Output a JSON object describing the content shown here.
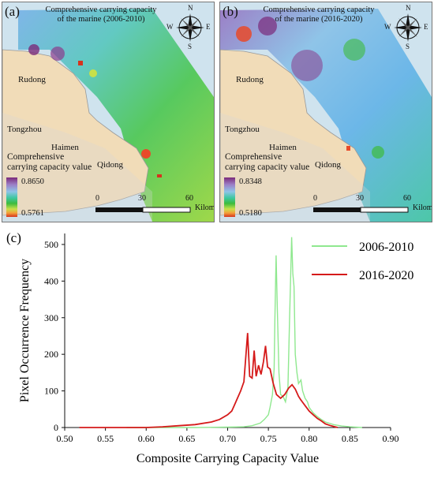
{
  "panels": [
    {
      "letter": "(a)",
      "title_line1": "Comprehensive carrying capacity",
      "title_line2": "of the marine (2006-2010)",
      "legend_title_line1": "Comprehensive",
      "legend_title_line2": "carrying capacity value",
      "legend_max": "0.8650",
      "legend_min": "0.5761",
      "places": [
        "Rudong",
        "Tongzhou",
        "Haimen",
        "Qidong"
      ],
      "scale_ticks": [
        "0",
        "30",
        "60"
      ],
      "scale_unit": "Kilometers",
      "compass": {
        "n": "N",
        "s": "S",
        "e": "E",
        "w": "W"
      }
    },
    {
      "letter": "(b)",
      "title_line1": "Comprehensive carrying capacity",
      "title_line2": "of the marine (2016-2020)",
      "legend_title_line1": "Comprehensive",
      "legend_title_line2": "carrying capacity value",
      "legend_max": "0.8348",
      "legend_min": "0.5180",
      "places": [
        "Rudong",
        "Tongzhou",
        "Haimen",
        "Qidong"
      ],
      "scale_ticks": [
        "0",
        "30",
        "60"
      ],
      "scale_unit": "Kilometers",
      "compass": {
        "n": "N",
        "s": "S",
        "e": "E",
        "w": "W"
      }
    }
  ],
  "chart_letter": "(c)",
  "chart_data": {
    "type": "line",
    "xlabel": "Composite Carrying Capacity Value",
    "ylabel": "Pixel Occurrence Frequency",
    "xlim": [
      0.5,
      0.9
    ],
    "ylim": [
      0,
      530
    ],
    "xticks": [
      "0.50",
      "0.55",
      "0.60",
      "0.65",
      "0.70",
      "0.75",
      "0.80",
      "0.85",
      "0.90"
    ],
    "yticks": [
      "0",
      "100",
      "200",
      "300",
      "400",
      "500"
    ],
    "legend_position": "top-right",
    "series": [
      {
        "name": "2006-2010",
        "color": "#8fe88f",
        "points": [
          [
            0.576,
            0
          ],
          [
            0.62,
            0
          ],
          [
            0.66,
            0
          ],
          [
            0.7,
            1
          ],
          [
            0.72,
            2
          ],
          [
            0.73,
            5
          ],
          [
            0.74,
            12
          ],
          [
            0.745,
            22
          ],
          [
            0.75,
            35
          ],
          [
            0.752,
            55
          ],
          [
            0.755,
            90
          ],
          [
            0.757,
            160
          ],
          [
            0.758,
            300
          ],
          [
            0.7595,
            470
          ],
          [
            0.761,
            320
          ],
          [
            0.763,
            150
          ],
          [
            0.765,
            90
          ],
          [
            0.768,
            85
          ],
          [
            0.771,
            70
          ],
          [
            0.774,
            110
          ],
          [
            0.776,
            300
          ],
          [
            0.7785,
            520
          ],
          [
            0.78,
            420
          ],
          [
            0.7815,
            385
          ],
          [
            0.783,
            200
          ],
          [
            0.785,
            150
          ],
          [
            0.787,
            120
          ],
          [
            0.79,
            130
          ],
          [
            0.792,
            100
          ],
          [
            0.795,
            80
          ],
          [
            0.798,
            70
          ],
          [
            0.8,
            55
          ],
          [
            0.805,
            40
          ],
          [
            0.81,
            30
          ],
          [
            0.815,
            22
          ],
          [
            0.82,
            15
          ],
          [
            0.83,
            8
          ],
          [
            0.84,
            4
          ],
          [
            0.85,
            2
          ],
          [
            0.865,
            0
          ]
        ]
      },
      {
        "name": "2016-2020",
        "color": "#d51a1a",
        "points": [
          [
            0.518,
            0
          ],
          [
            0.55,
            0
          ],
          [
            0.6,
            0
          ],
          [
            0.62,
            2
          ],
          [
            0.64,
            5
          ],
          [
            0.66,
            8
          ],
          [
            0.68,
            15
          ],
          [
            0.69,
            22
          ],
          [
            0.7,
            35
          ],
          [
            0.705,
            45
          ],
          [
            0.708,
            60
          ],
          [
            0.712,
            80
          ],
          [
            0.716,
            100
          ],
          [
            0.72,
            125
          ],
          [
            0.7245,
            258
          ],
          [
            0.727,
            140
          ],
          [
            0.73,
            135
          ],
          [
            0.7325,
            210
          ],
          [
            0.735,
            140
          ],
          [
            0.738,
            170
          ],
          [
            0.741,
            145
          ],
          [
            0.744,
            180
          ],
          [
            0.7465,
            223
          ],
          [
            0.749,
            165
          ],
          [
            0.752,
            160
          ],
          [
            0.756,
            120
          ],
          [
            0.76,
            90
          ],
          [
            0.765,
            80
          ],
          [
            0.77,
            90
          ],
          [
            0.775,
            108
          ],
          [
            0.779,
            117
          ],
          [
            0.783,
            105
          ],
          [
            0.787,
            85
          ],
          [
            0.79,
            75
          ],
          [
            0.795,
            60
          ],
          [
            0.8,
            45
          ],
          [
            0.805,
            35
          ],
          [
            0.81,
            25
          ],
          [
            0.815,
            18
          ],
          [
            0.82,
            10
          ],
          [
            0.825,
            6
          ],
          [
            0.83,
            3
          ],
          [
            0.835,
            0
          ]
        ]
      }
    ]
  }
}
